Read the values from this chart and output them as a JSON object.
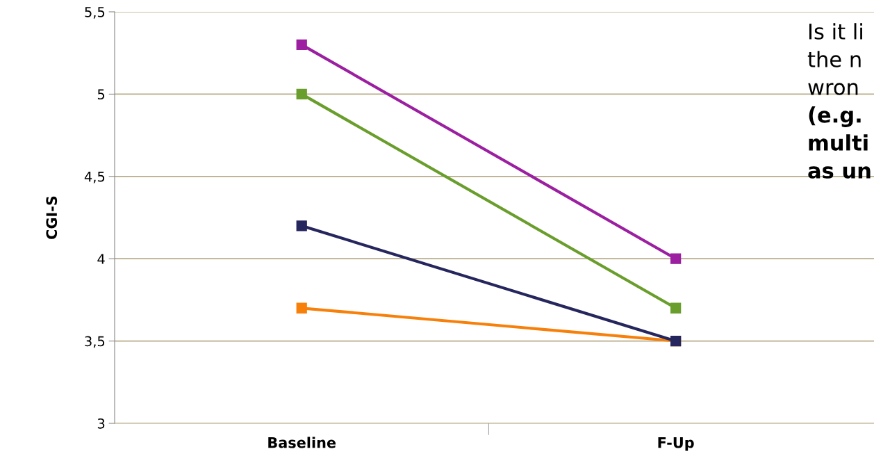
{
  "chart_data": {
    "type": "line",
    "ylabel": "CGI-S",
    "categories": [
      "Baseline",
      "F-Up"
    ],
    "series": [
      {
        "color": "#9b1fa0",
        "values": [
          5.3,
          4.0
        ]
      },
      {
        "color": "#6a9e2c",
        "values": [
          5.0,
          3.7
        ]
      },
      {
        "color": "#26265e",
        "values": [
          4.2,
          3.5
        ]
      },
      {
        "color": "#f7800a",
        "values": [
          3.7,
          3.5
        ]
      }
    ],
    "ylim": [
      3,
      5.5
    ],
    "yticks": [
      3,
      {
        "value": 3.5,
        "label": "3,5"
      },
      4,
      {
        "value": 4.5,
        "label": "4,5"
      },
      5,
      {
        "value": 5.5,
        "label": "5,5"
      }
    ],
    "grid": "y",
    "legend": false,
    "marker": "square",
    "line_style": "solid",
    "annotations": [
      "Is it li",
      "the n",
      "wron",
      "(e.g.",
      "multi",
      "as un"
    ]
  }
}
